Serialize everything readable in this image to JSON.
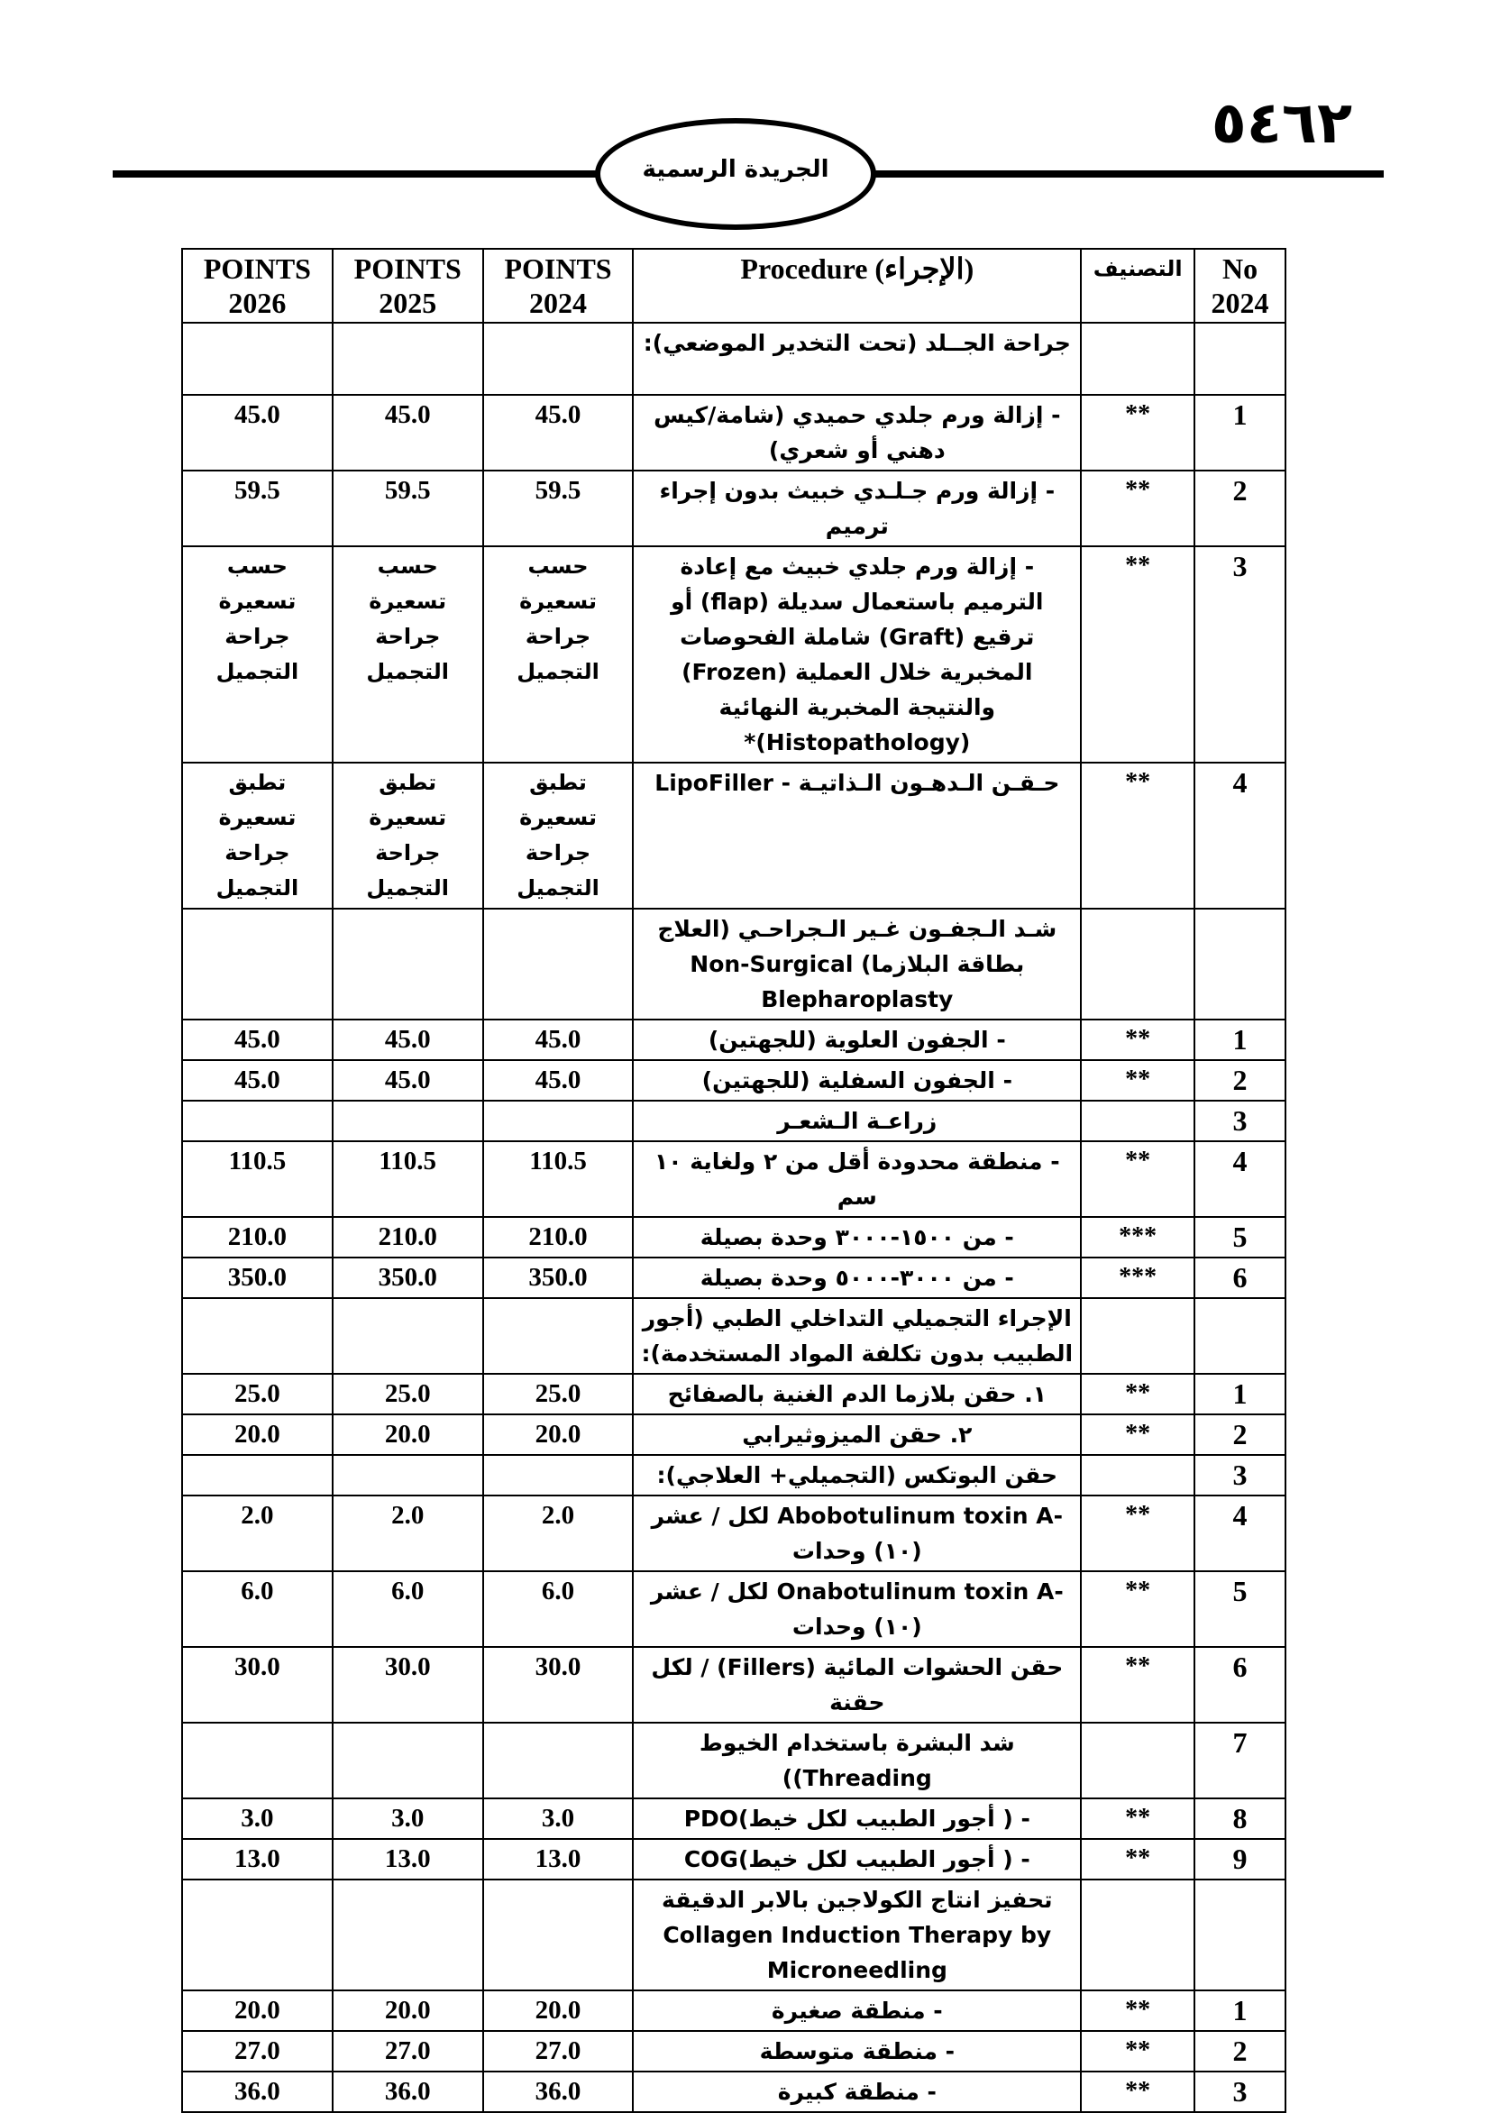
{
  "header": {
    "page_number": "٥٤٦٢",
    "gazette_title": "الجريدة الرسمية"
  },
  "table": {
    "columns": {
      "p2026": "POINTS 2026",
      "p2025": "POINTS 2025",
      "p2024": "POINTS 2024",
      "procedure": "Procedure (الإجراء)",
      "classification": "التصنيف",
      "no": "No 2024"
    },
    "rows": [
      {
        "no": "",
        "cls": "",
        "proc": "جراحة الجــلد (تحت التخدير الموضعي):",
        "p2024": "",
        "p2025": "",
        "p2026": ""
      },
      {
        "no": "1",
        "cls": "**",
        "proc": "- إزالة ورم جلدي حميدي (شامة/كيس دهني أو شعري)",
        "p2024": "45.0",
        "p2025": "45.0",
        "p2026": "45.0"
      },
      {
        "no": "2",
        "cls": "**",
        "proc": "- إزالة ورم جـلـدي خبيث بدون إجراء ترميم",
        "p2024": "59.5",
        "p2025": "59.5",
        "p2026": "59.5"
      },
      {
        "no": "3",
        "cls": "**",
        "proc": "- إزالة ورم جلدي خبيث مع إعادة الترميم باستعمال سديلة (flap) أو ترقيع (Graft) شاملة الفحوصات المخبرية خلال العملية (Frozen) والنتيجة المخبرية النهائية (Histopathology)*",
        "p2024": "حسب تسعيرة جراحة التجميل",
        "p2025": "حسب تسعيرة جراحة التجميل",
        "p2026": "حسب تسعيرة جراحة التجميل"
      },
      {
        "no": "4",
        "cls": "**",
        "proc": "حـقـن الـدهـون الـذاتيـة - LipoFiller",
        "p2024": "تطبق تسعيرة جراحة التجميل",
        "p2025": "تطبق تسعيرة جراحة التجميل",
        "p2026": "تطبق تسعيرة جراحة التجميل"
      },
      {
        "no": "",
        "cls": "",
        "proc": "شـد الـجفـون غـير الـجراحـي (العلاج بطاقة البلازما) Non-Surgical Blepharoplasty",
        "p2024": "",
        "p2025": "",
        "p2026": ""
      },
      {
        "no": "1",
        "cls": "**",
        "proc": "- الجفون العلوية (للجهتين)",
        "p2024": "45.0",
        "p2025": "45.0",
        "p2026": "45.0"
      },
      {
        "no": "2",
        "cls": "**",
        "proc": "- الجفون السفلية (للجهتين)",
        "p2024": "45.0",
        "p2025": "45.0",
        "p2026": "45.0"
      },
      {
        "no": "3",
        "cls": "",
        "proc": "زراعـة الـشعـر",
        "p2024": "",
        "p2025": "",
        "p2026": ""
      },
      {
        "no": "4",
        "cls": "**",
        "proc": "- منطقة محدودة أقل من ٢ ولغاية ١٠ سم",
        "p2024": "110.5",
        "p2025": "110.5",
        "p2026": "110.5"
      },
      {
        "no": "5",
        "cls": "***",
        "proc": "- من ١٥٠٠-٣٠٠٠ وحدة بصيلة",
        "p2024": "210.0",
        "p2025": "210.0",
        "p2026": "210.0"
      },
      {
        "no": "6",
        "cls": "***",
        "proc": "- من ٣٠٠٠-٥٠٠٠ وحدة بصيلة",
        "p2024": "350.0",
        "p2025": "350.0",
        "p2026": "350.0"
      },
      {
        "no": "",
        "cls": "",
        "proc": "الإجراء التجميلي التداخلي الطبي (أجور الطبيب بدون تكلفة المواد المستخدمة):",
        "p2024": "",
        "p2025": "",
        "p2026": ""
      },
      {
        "no": "1",
        "cls": "**",
        "proc": "١. حقن بلازما الدم الغنية بالصفائح",
        "p2024": "25.0",
        "p2025": "25.0",
        "p2026": "25.0"
      },
      {
        "no": "2",
        "cls": "**",
        "proc": "٢. حقن الميزوثيرابي",
        "p2024": "20.0",
        "p2025": "20.0",
        "p2026": "20.0"
      },
      {
        "no": "3",
        "cls": "",
        "proc": "حقن البوتكس (التجميلي+ العلاجي):",
        "p2024": "",
        "p2025": "",
        "p2026": ""
      },
      {
        "no": "4",
        "cls": "**",
        "proc": "-Abobotulinum toxin A لكل / عشر (١٠) وحدات",
        "p2024": "2.0",
        "p2025": "2.0",
        "p2026": "2.0"
      },
      {
        "no": "5",
        "cls": "**",
        "proc": "-Onabotulinum toxin A لكل / عشر (١٠) وحدات",
        "p2024": "6.0",
        "p2025": "6.0",
        "p2026": "6.0"
      },
      {
        "no": "6",
        "cls": "**",
        "proc": "حقن الحشوات المائية (Fillers) / لكل حقنة",
        "p2024": "30.0",
        "p2025": "30.0",
        "p2026": "30.0"
      },
      {
        "no": "7",
        "cls": "",
        "proc": "شد البشرة باستخدام الخيوط Threading))",
        "p2024": "",
        "p2025": "",
        "p2026": ""
      },
      {
        "no": "8",
        "cls": "**",
        "proc": "- ( أجور الطبيب لكل خيط)PDO",
        "p2024": "3.0",
        "p2025": "3.0",
        "p2026": "3.0"
      },
      {
        "no": "9",
        "cls": "**",
        "proc": "- ( أجور الطبيب لكل خيط)COG",
        "p2024": "13.0",
        "p2025": "13.0",
        "p2026": "13.0"
      },
      {
        "no": "",
        "cls": "",
        "proc": "تحفيز انتاج الكولاجين بالابر الدقيقة Collagen Induction Therapy by Microneedling",
        "p2024": "",
        "p2025": "",
        "p2026": ""
      },
      {
        "no": "1",
        "cls": "**",
        "proc": "- منطقة صغيرة",
        "p2024": "20.0",
        "p2025": "20.0",
        "p2026": "20.0"
      },
      {
        "no": "2",
        "cls": "**",
        "proc": "- منطقة متوسطة",
        "p2024": "27.0",
        "p2025": "27.0",
        "p2026": "27.0"
      },
      {
        "no": "3",
        "cls": "**",
        "proc": "- منطقة كبيرة",
        "p2024": "36.0",
        "p2025": "36.0",
        "p2026": "36.0"
      }
    ]
  }
}
